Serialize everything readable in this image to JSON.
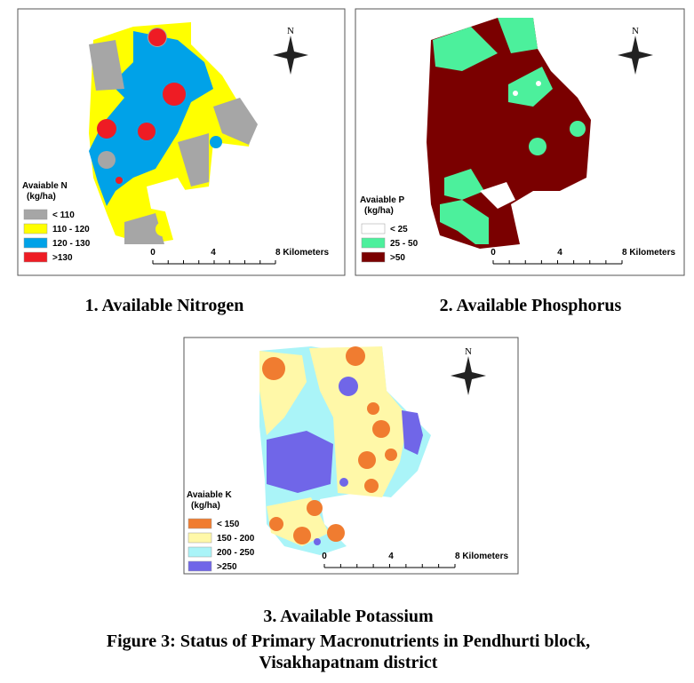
{
  "panels": [
    {
      "legend": {
        "title": "Avaiable N",
        "unit": "(kg/ha)",
        "items": [
          {
            "label": "< 110",
            "color": "#a6a6a6"
          },
          {
            "label": "110 - 120",
            "color": "#ffff00"
          },
          {
            "label": "120 - 130",
            "color": "#00a2e8"
          },
          {
            "label": ">130",
            "color": "#ee1c24"
          }
        ]
      },
      "scale": [
        "0",
        "4",
        "8 Kilometers"
      ],
      "north": "N",
      "caption": "1. Available Nitrogen"
    },
    {
      "legend": {
        "title": "Avaiable P",
        "unit": "(kg/ha)",
        "items": [
          {
            "label": "< 25",
            "color": "#ffffff"
          },
          {
            "label": "25 - 50",
            "color": "#4cf09c"
          },
          {
            "label": ">50",
            "color": "#7a0000"
          }
        ]
      },
      "scale": [
        "0",
        "4",
        "8 Kilometers"
      ],
      "north": "N",
      "caption": "2. Available Phosphorus"
    },
    {
      "legend": {
        "title": "Avaiable K",
        "unit": "(kg/ha)",
        "items": [
          {
            "label": "< 150",
            "color": "#f07c30"
          },
          {
            "label": "150 - 200",
            "color": "#fff8a8"
          },
          {
            "label": "200 - 250",
            "color": "#aaf4f8"
          },
          {
            "label": ">250",
            "color": "#7066e8"
          }
        ]
      },
      "scale": [
        "0",
        "4",
        "8 Kilometers"
      ],
      "north": "N",
      "caption": "3. Available Potassium"
    }
  ],
  "figure_caption": [
    "Figure 3: Status of Primary Macronutrients in Pendhurti block,",
    "Visakhapatnam district"
  ]
}
